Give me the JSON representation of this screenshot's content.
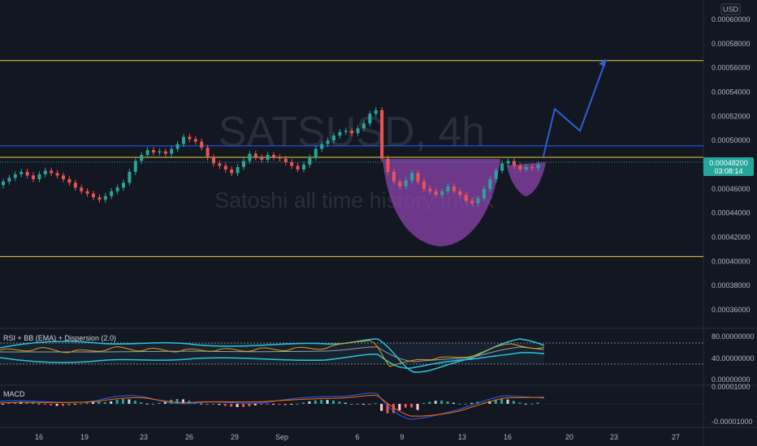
{
  "currency": "USD",
  "watermark": {
    "symbol": "SATSUSD, 4h",
    "description": "Satoshi all time history Index"
  },
  "price_tag": {
    "value": "0.00048200",
    "countdown": "03:08:14"
  },
  "indicators": {
    "rsi_label": "RSI + BB (EMA) + Dispersion (2.0)",
    "macd_label": "MACD"
  },
  "colors": {
    "bg": "#131722",
    "up": "#26a69a",
    "down": "#ef5350",
    "yellow": "#e4d33b",
    "blue_line": "#2962ff",
    "cup": "#8e44ad",
    "arrow": "#2c5fd6"
  },
  "chart_data": [
    {
      "type": "candlestick",
      "price_axis_labels": [
        "0.00060000",
        "0.00058000",
        "0.00056000",
        "0.00054000",
        "0.00052000",
        "0.00050000",
        "0.00048200",
        "0.00046000",
        "0.00044000",
        "0.00042000",
        "0.00040000",
        "0.00038000",
        "0.00036000"
      ],
      "ylim": [
        0.000352,
        0.000615
      ],
      "time_axis_labels": [
        "16",
        "19",
        "23",
        "26",
        "29",
        "Sep",
        "6",
        "9",
        "13",
        "16",
        "20",
        "23",
        "27"
      ],
      "horizontal_levels": [
        {
          "price": 0.000566,
          "color": "yellow"
        },
        {
          "price": 0.0004955,
          "color": "blue"
        },
        {
          "price": 0.000486,
          "color": "yellow"
        },
        {
          "price": 0.000404,
          "color": "yellow"
        }
      ],
      "current_price": 0.000482,
      "closes_approx": [
        0.000466,
        0.000469,
        0.000472,
        0.000474,
        0.000471,
        0.000468,
        0.000472,
        0.000475,
        0.000473,
        0.000471,
        0.000468,
        0.000465,
        0.000461,
        0.000458,
        0.000456,
        0.000453,
        0.000451,
        0.000454,
        0.000458,
        0.000461,
        0.000465,
        0.000474,
        0.000483,
        0.000488,
        0.000492,
        0.00049,
        0.000491,
        0.000489,
        0.000493,
        0.000497,
        0.000503,
        0.000501,
        0.000499,
        0.000494,
        0.000486,
        0.000481,
        0.000479,
        0.000476,
        0.000473,
        0.000478,
        0.000483,
        0.000489,
        0.000486,
        0.000484,
        0.000488,
        0.000486,
        0.000485,
        0.000482,
        0.000479,
        0.000476,
        0.00048,
        0.000486,
        0.000493,
        0.000497,
        0.0005,
        0.000504,
        0.000507,
        0.000508,
        0.000506,
        0.00051,
        0.000514,
        0.000522,
        0.000525,
        0.000485,
        0.000474,
        0.000466,
        0.000462,
        0.000467,
        0.000473,
        0.000466,
        0.00046,
        0.000458,
        0.000455,
        0.000458,
        0.000462,
        0.000458,
        0.000455,
        0.00045,
        0.000448,
        0.000452,
        0.00046,
        0.000468,
        0.000475,
        0.000481,
        0.000483,
        0.000479,
        0.000476,
        0.000478,
        0.000477,
        0.00048
      ],
      "projection_path": [
        0.0004868,
        0.000526,
        0.000508,
        0.0005665
      ]
    },
    {
      "type": "line",
      "name": "RSI + BB (EMA) + Dispersion (2.0)",
      "axis_labels": [
        "80.00000000",
        "40.00000000",
        "0.00000000"
      ],
      "ylim": [
        0,
        100
      ]
    },
    {
      "type": "bar",
      "name": "MACD",
      "axis_labels": [
        "0.00001000",
        "-0.00001000"
      ],
      "ylim": [
        -1.5e-05,
        1.2e-05
      ]
    }
  ]
}
